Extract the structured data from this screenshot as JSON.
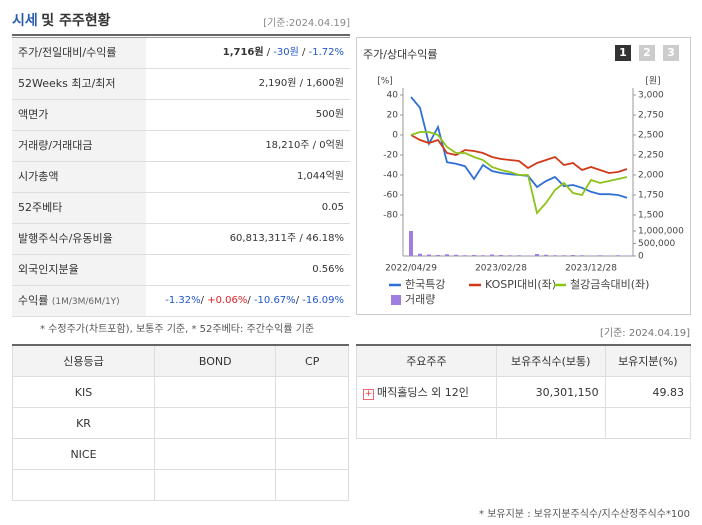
{
  "header": {
    "title_main": "시세",
    "title_rest": "및 주주현황",
    "date": "[기준:2024.04.19]"
  },
  "table": {
    "rows": [
      {
        "label": "주가/전일대비/수익률",
        "parts": [
          {
            "text": "1,716원",
            "style": "bold"
          },
          {
            "text": " / "
          },
          {
            "text": "-30원",
            "style": "down"
          },
          {
            "text": " / "
          },
          {
            "text": "-1.72%",
            "style": "down"
          }
        ]
      },
      {
        "label": "52Weeks 최고/최저",
        "parts": [
          {
            "text": "2,190원 / 1,600원"
          }
        ]
      },
      {
        "label": "액면가",
        "parts": [
          {
            "text": "500원"
          }
        ]
      },
      {
        "label": "거래량/거래대금",
        "parts": [
          {
            "text": "18,210주 / 0억원"
          }
        ]
      },
      {
        "label": "시가총액",
        "parts": [
          {
            "text": "1,044억원"
          }
        ]
      },
      {
        "label": "52주베타",
        "parts": [
          {
            "text": "0.05"
          }
        ]
      },
      {
        "label": "발행주식수/유동비율",
        "parts": [
          {
            "text": "60,813,311주 / 46.18%"
          }
        ]
      },
      {
        "label": "외국인지분율",
        "parts": [
          {
            "text": "0.56%"
          }
        ]
      },
      {
        "label": "수익률",
        "label_note": "(1M/3M/6M/1Y)",
        "parts": [
          {
            "text": "-1.32%",
            "style": "down"
          },
          {
            "text": "/ "
          },
          {
            "text": "+0.06%",
            "style": "up"
          },
          {
            "text": "/ "
          },
          {
            "text": "-10.67%",
            "style": "down"
          },
          {
            "text": "/ "
          },
          {
            "text": "-16.09%",
            "style": "down"
          }
        ]
      }
    ]
  },
  "note": "* 수정주가(차트포함), 보통주 기준, * 52주베타: 주간수익률 기준",
  "chart_panel": {
    "title": "주가/상대수익률",
    "tabs": [
      "1",
      "2",
      "3"
    ]
  },
  "chart_data": {
    "type": "line",
    "ylabel": "[%]",
    "y2label": "[원]",
    "categories": [
      "2022/04/29",
      null,
      null,
      null,
      null,
      null,
      null,
      null,
      null,
      null,
      "2023/02/28",
      null,
      null,
      null,
      null,
      null,
      null,
      null,
      null,
      null,
      "2023/12/28",
      null,
      null,
      null,
      null
    ],
    "ylim": [
      -80,
      40
    ],
    "yticks": [
      40,
      20,
      0,
      -20,
      -40,
      -60,
      -80
    ],
    "y2lim": [
      1500,
      3000
    ],
    "y2ticks": [
      {
        "value": 3000,
        "label": "3,000"
      },
      {
        "value": 2750,
        "label": "2,750"
      },
      {
        "value": 2500,
        "label": "2,500"
      },
      {
        "value": 2250,
        "label": "2,250"
      },
      {
        "value": 2000,
        "label": "2,000"
      },
      {
        "value": 1750,
        "label": "1,750"
      },
      {
        "value": 1500,
        "label": "1,500"
      }
    ],
    "y3lim": [
      0,
      1000000
    ],
    "y3ticks": [
      {
        "value": 1000000,
        "label": "1,000,000"
      },
      {
        "value": 500000,
        "label": "500,000"
      },
      0
    ],
    "series": [
      {
        "name": "한국특강",
        "color": "#2f6fd6",
        "axis": "y2",
        "values": [
          2975,
          2840,
          2390,
          2600,
          2160,
          2140,
          2110,
          1950,
          2125,
          2050,
          2025,
          2010,
          2000,
          1990,
          1850,
          1925,
          1975,
          1860,
          1875,
          1840,
          1790,
          1760,
          1760,
          1750,
          1716
        ]
      },
      {
        "name": "KOSPI대비(좌)",
        "color": "#d03a1a",
        "values": [
          0,
          -5,
          -8,
          -5,
          -18,
          -20,
          -15,
          -16,
          -18,
          -22,
          -24,
          -25,
          -26,
          -33,
          -28,
          -25,
          -22,
          -30,
          -28,
          -35,
          -32,
          -35,
          -38,
          -37,
          -34
        ]
      },
      {
        "name": "철강금속대비(좌)",
        "color": "#8cc21a",
        "values": [
          0,
          3,
          3,
          0,
          -12,
          -18,
          -18,
          -22,
          -25,
          -32,
          -35,
          -37,
          -40,
          -40,
          -78,
          -68,
          -55,
          -48,
          -58,
          -60,
          -45,
          -48,
          -46,
          -44,
          -42
        ]
      },
      {
        "name": "거래량",
        "color": "#a07ee0",
        "axis": "y3",
        "type": "bar",
        "values": [
          1000000,
          90000,
          60000,
          40000,
          70000,
          50000,
          30000,
          40000,
          30000,
          60000,
          40000,
          30000,
          30000,
          20000,
          80000,
          50000,
          30000,
          30000,
          40000,
          30000,
          20000,
          30000,
          20000,
          30000,
          20000
        ]
      }
    ]
  },
  "chart_date": "[기준: 2024.04.19]",
  "credit": {
    "header": [
      "신용등급",
      "BOND",
      "CP"
    ],
    "rows": [
      [
        "KIS",
        "",
        ""
      ],
      [
        "KR",
        "",
        ""
      ],
      [
        "NICE",
        "",
        ""
      ],
      [
        "",
        "",
        ""
      ]
    ]
  },
  "holders": {
    "header": [
      "주요주주",
      "보유주식수(보통)",
      "보유지분(%)"
    ],
    "rows": [
      [
        "매직홀딩스 외 12인",
        "30,301,150",
        "49.83"
      ],
      [
        "",
        "",
        ""
      ]
    ]
  },
  "holders_note": "* 보유지분 : 보유지분주식수/지수산정주식수*100"
}
